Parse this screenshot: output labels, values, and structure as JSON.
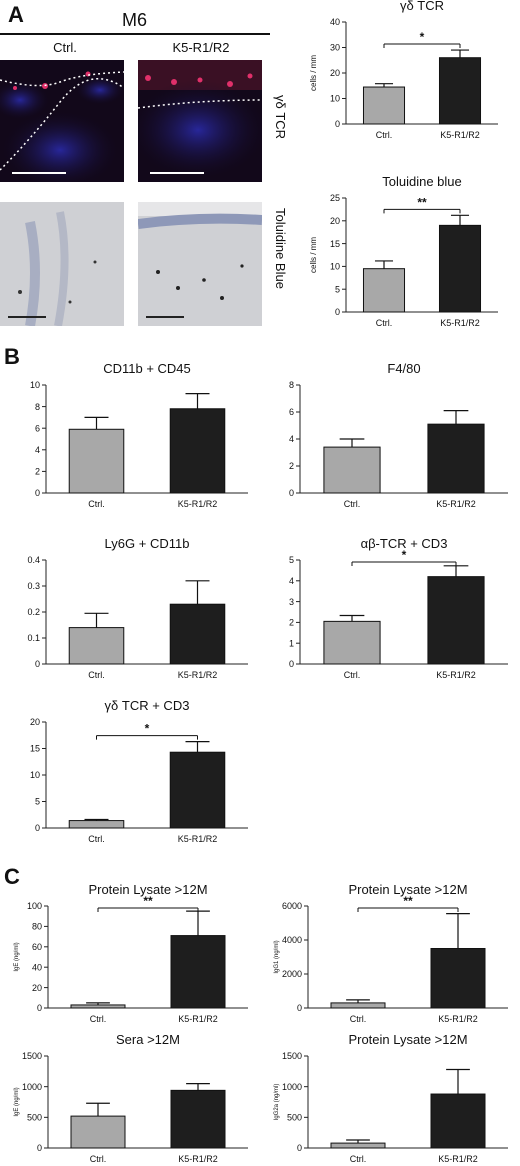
{
  "panel_a": {
    "letter": "A",
    "title": "M6",
    "col_ctrl": "Ctrl.",
    "col_mut": "K5-R1/R2",
    "row1_label": "γδ TCR",
    "row2_label": "Toluidine Blue"
  },
  "panel_b": {
    "letter": "B"
  },
  "panel_c": {
    "letter": "C"
  },
  "chart_data": [
    {
      "id": "gdtcr_a",
      "type": "bar",
      "title": "γδ TCR",
      "ylabel": "cells / mm",
      "categories": [
        "Ctrl.",
        "K5-R1/R2"
      ],
      "values": [
        14.5,
        26
      ],
      "errors": [
        1.3,
        3
      ],
      "ylim": [
        0,
        40
      ],
      "yticks": [
        0,
        10,
        20,
        30,
        40
      ],
      "significance": "*"
    },
    {
      "id": "tolu",
      "type": "bar",
      "title": "Toluidine blue",
      "ylabel": "cells / mm",
      "categories": [
        "Ctrl.",
        "K5-R1/R2"
      ],
      "values": [
        9.5,
        19
      ],
      "errors": [
        1.7,
        2.2
      ],
      "ylim": [
        0,
        25
      ],
      "yticks": [
        0,
        5,
        10,
        15,
        20,
        25
      ],
      "significance": "**"
    },
    {
      "id": "cd11b",
      "type": "bar",
      "title": "CD11b + CD45",
      "ylabel": "",
      "categories": [
        "Ctrl.",
        "K5-R1/R2"
      ],
      "values": [
        5.9,
        7.8
      ],
      "errors": [
        1.1,
        1.4
      ],
      "ylim": [
        0,
        10
      ],
      "yticks": [
        0,
        2,
        4,
        6,
        8,
        10
      ],
      "significance": ""
    },
    {
      "id": "f480",
      "type": "bar",
      "title": "F4/80",
      "ylabel": "",
      "categories": [
        "Ctrl.",
        "K5-R1/R2"
      ],
      "values": [
        3.4,
        5.1
      ],
      "errors": [
        0.6,
        1.0
      ],
      "ylim": [
        0,
        8
      ],
      "yticks": [
        0,
        2,
        4,
        6,
        8
      ],
      "significance": ""
    },
    {
      "id": "ly6g",
      "type": "bar",
      "title": "Ly6G + CD11b",
      "ylabel": "",
      "categories": [
        "Ctrl.",
        "K5-R1/R2"
      ],
      "values": [
        0.14,
        0.23
      ],
      "errors": [
        0.055,
        0.09
      ],
      "ylim": [
        0,
        0.4
      ],
      "yticks": [
        0,
        0.1,
        0.2,
        0.3,
        0.4
      ],
      "significance": ""
    },
    {
      "id": "abtcr",
      "type": "bar",
      "title": "αβ-TCR + CD3",
      "ylabel": "",
      "categories": [
        "Ctrl.",
        "K5-R1/R2"
      ],
      "values": [
        2.05,
        4.2
      ],
      "errors": [
        0.28,
        0.52
      ],
      "ylim": [
        0,
        5
      ],
      "yticks": [
        0,
        1,
        2,
        3,
        4,
        5
      ],
      "significance": "*"
    },
    {
      "id": "gdtcr_b",
      "type": "bar",
      "title": "γδ TCR + CD3",
      "ylabel": "",
      "categories": [
        "Ctrl.",
        "K5-R1/R2"
      ],
      "values": [
        1.4,
        14.3
      ],
      "errors": [
        0.2,
        2.0
      ],
      "ylim": [
        0,
        20
      ],
      "yticks": [
        0,
        5,
        10,
        15,
        20
      ],
      "significance": "*"
    },
    {
      "id": "ige_lys",
      "type": "bar",
      "title": "Protein Lysate >12M",
      "ylabel": "IgE (ng/ml)",
      "categories": [
        "Ctrl.",
        "K5-R1/R2"
      ],
      "values": [
        3,
        71
      ],
      "errors": [
        2,
        24
      ],
      "ylim": [
        0,
        100
      ],
      "yticks": [
        0,
        20,
        40,
        60,
        80,
        100
      ],
      "significance": "**"
    },
    {
      "id": "igg1_lys",
      "type": "bar",
      "title": "Protein Lysate >12M",
      "ylabel": "IgG1 (ng/ml)",
      "categories": [
        "Ctrl.",
        "K5-R1/R2"
      ],
      "values": [
        300,
        3500
      ],
      "errors": [
        180,
        2050
      ],
      "ylim": [
        0,
        6000
      ],
      "yticks": [
        0,
        2000,
        4000,
        6000
      ],
      "significance": "**"
    },
    {
      "id": "ige_sera",
      "type": "bar",
      "title": "Sera >12M",
      "ylabel": "IgE (ng/ml)",
      "categories": [
        "Ctrl.",
        "K5-R1/R2"
      ],
      "values": [
        520,
        940
      ],
      "errors": [
        210,
        110
      ],
      "ylim": [
        0,
        1500
      ],
      "yticks": [
        0,
        500,
        1000,
        1500
      ],
      "significance": ""
    },
    {
      "id": "igg2a_lys",
      "type": "bar",
      "title": "Protein Lysate >12M",
      "ylabel": "IgG2a (ng/ml)",
      "categories": [
        "Ctrl.",
        "K5-R1/R2"
      ],
      "values": [
        80,
        880
      ],
      "errors": [
        50,
        400
      ],
      "ylim": [
        0,
        1500
      ],
      "yticks": [
        0,
        500,
        1000,
        1500
      ],
      "significance": ""
    }
  ]
}
